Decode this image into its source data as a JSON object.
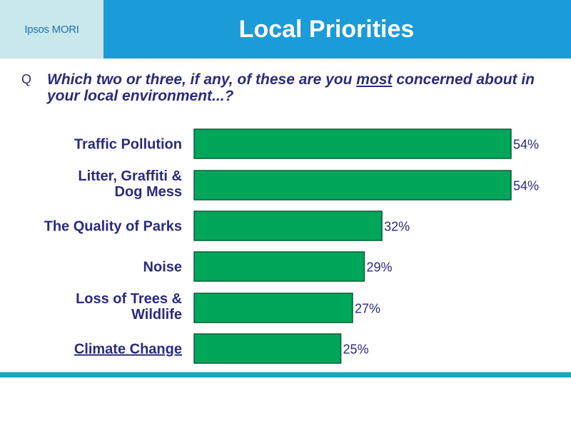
{
  "header": {
    "brand": "Ipsos MORI",
    "title": "Local Priorities"
  },
  "question": {
    "marker": "Q",
    "text_before": "Which two or three, if any, of these are you ",
    "emphasis": "most",
    "text_after": " concerned about in your local environment...?"
  },
  "chart_data": {
    "type": "bar",
    "orientation": "horizontal",
    "categories": [
      "Traffic Pollution",
      "Litter, Graffiti & Dog Mess",
      "The Quality of Parks",
      "Noise",
      "Loss of Trees & Wildlife",
      "Climate Change"
    ],
    "category_lines": [
      [
        "Traffic Pollution"
      ],
      [
        "Litter, Graffiti &",
        "Dog Mess"
      ],
      [
        "The Quality of Parks"
      ],
      [
        "Noise"
      ],
      [
        "Loss of Trees &",
        "Wildlife"
      ],
      [
        "Climate Change"
      ]
    ],
    "underlined_categories": [
      "Climate Change"
    ],
    "values": [
      54,
      54,
      32,
      29,
      27,
      25
    ],
    "data_labels": [
      "54%",
      "54%",
      "32%",
      "29%",
      "27%",
      "25%"
    ],
    "unit": "%",
    "xlim": [
      0,
      54
    ],
    "grid": false,
    "bar_color": "#00a65a",
    "label_color": "#2b2b7c"
  }
}
